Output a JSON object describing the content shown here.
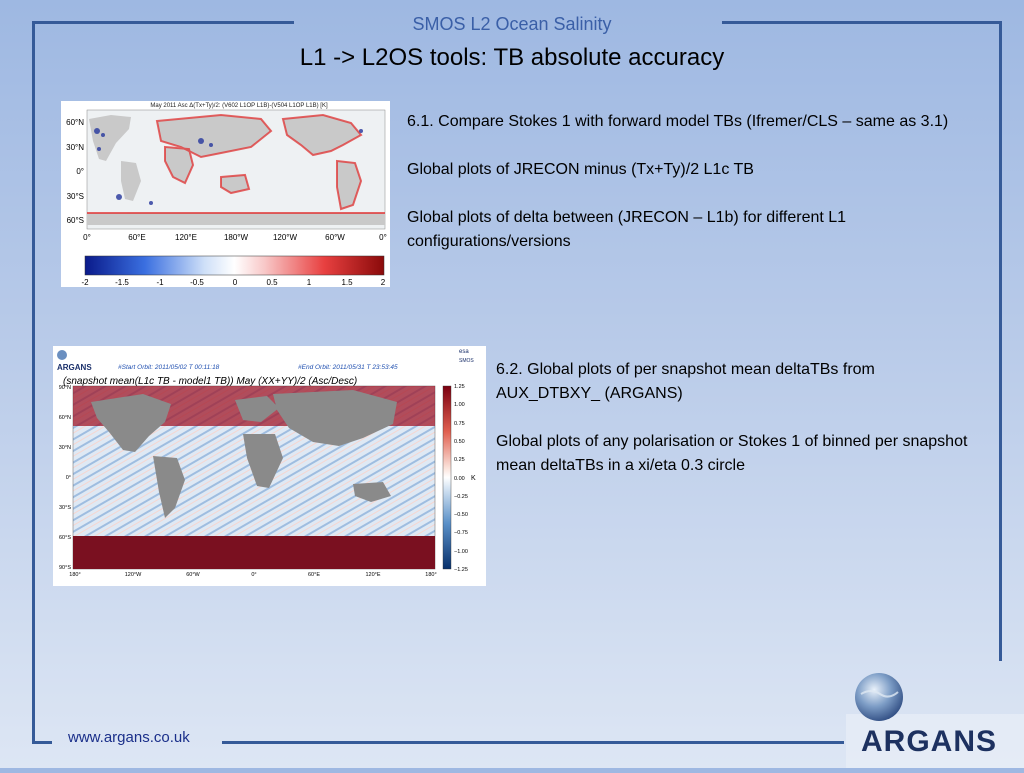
{
  "header": {
    "top_label": "SMOS L2 Ocean Salinity",
    "title": "L1 -> L2OS tools: TB absolute accuracy"
  },
  "figure1": {
    "title": "May 2011 Asc Δ(Tx+Ty)/2: (V602 L1OP L1B)-(V504 L1OP L1B) [K]",
    "lat_ticks": [
      "60°N",
      "30°N",
      "0°",
      "30°S",
      "60°S"
    ],
    "lon_ticks": [
      "0°",
      "60°E",
      "120°E",
      "180°W",
      "120°W",
      "60°W",
      "0°"
    ],
    "colorbar_ticks": [
      "-2",
      "-1.5",
      "-1",
      "-0.5",
      "0",
      "0.5",
      "1",
      "1.5",
      "2"
    ],
    "colormap": [
      "#0a1a8a",
      "#3a6fe0",
      "#cfe0f8",
      "#ffffff",
      "#f8c8c8",
      "#e84040",
      "#8a0a0a"
    ]
  },
  "figure2": {
    "org": "ARGANS",
    "start_orbit": "#Start Orbit: 2011/05/02 T 00:11:18",
    "end_orbit": "#End Orbit: 2011/05/31 T 23:53:45",
    "title": "(snapshot mean(L1c TB - model1 TB)) May (XX+YY)/2 (Asc/Desc)",
    "lat_ticks": [
      "90°N",
      "60°N",
      "30°N",
      "0°",
      "30°S",
      "60°S",
      "90°S"
    ],
    "lon_ticks": [
      "180°",
      "120°W",
      "60°W",
      "0°",
      "60°E",
      "120°E",
      "180°"
    ],
    "colorbar_ticks": [
      "1.25",
      "1.00",
      "0.75",
      "0.50",
      "0.25",
      "0.00",
      "−0.25",
      "−0.50",
      "−0.75",
      "−1.00",
      "−1.25"
    ],
    "colorbar_unit": "K",
    "badge_esa": "esa",
    "badge_smos": "SMOS"
  },
  "text1": {
    "p1": "6.1. Compare Stokes 1 with forward model TBs (Ifremer/CLS – same as 3.1)",
    "p2": "Global plots of JRECON minus (Tx+Ty)/2 L1c TB",
    "p3": "Global plots of delta between (JRECON – L1b) for different L1 configurations/versions"
  },
  "text2": {
    "p1": "6.2. Global plots of per snapshot mean deltaTBs from AUX_DTBXY_ (ARGANS)",
    "p2": "Global plots of any polarisation or Stokes 1 of binned per snapshot mean deltaTBs in a xi/eta 0.3 circle"
  },
  "footer": {
    "url": "www.argans.co.uk",
    "logo_text": "ARGANS"
  }
}
